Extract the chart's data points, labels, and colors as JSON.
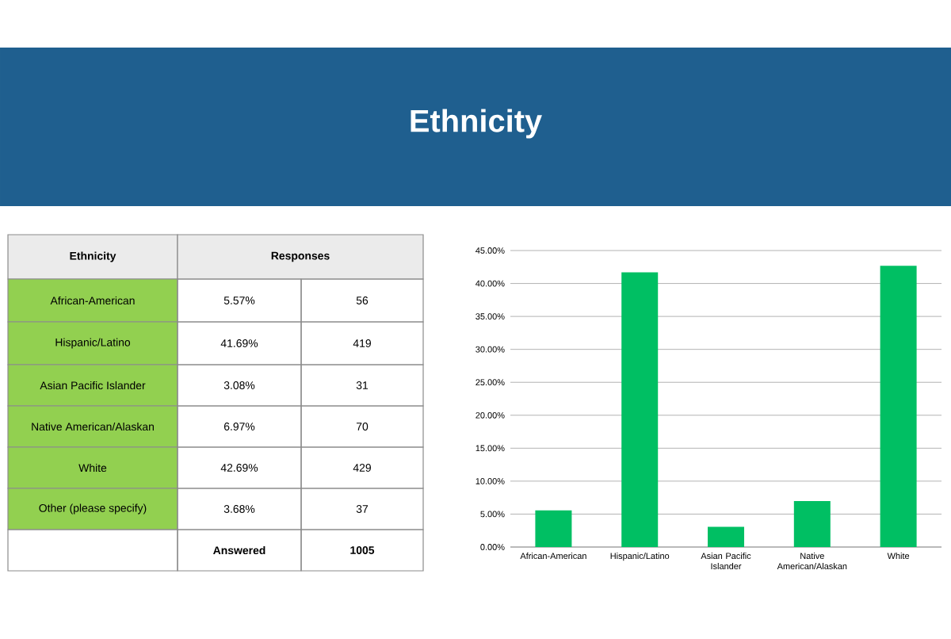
{
  "chart_data": {
    "type": "bar",
    "title": "Ethnicity",
    "categories": [
      "African-American",
      "Hispanic/Latino",
      "Asian Pacific Islander",
      "Native American/Alaskan",
      "White"
    ],
    "values": [
      5.57,
      41.69,
      3.08,
      6.97,
      42.69
    ],
    "color": "#00bf63",
    "ylim": [
      0,
      45
    ],
    "yticks": [
      {
        "value": 0,
        "label": "0.00%"
      },
      {
        "value": 5,
        "label": "5.00%"
      },
      {
        "value": 10,
        "label": "10.00%"
      },
      {
        "value": 15,
        "label": "15.00%"
      },
      {
        "value": 20,
        "label": "20.00%"
      },
      {
        "value": 25,
        "label": "25.00%"
      },
      {
        "value": 30,
        "label": "30.00%"
      },
      {
        "value": 35,
        "label": "35.00%"
      },
      {
        "value": 40,
        "label": "40.00%"
      },
      {
        "value": 45,
        "label": "45.00%"
      }
    ],
    "grid": "y",
    "annotations": [
      "Ethnicity",
      "Responses",
      "African-American",
      "5.57%",
      "56",
      "Hispanic/Latino",
      "41.69%",
      "419",
      "Asian Pacific Islander",
      "3.08%",
      "31",
      "Native American/Alaskan",
      "6.97%",
      "70",
      "White",
      "42.69%",
      "429",
      "Other (please specify)",
      "3.68%",
      "37",
      "Answered",
      "1005"
    ]
  }
}
